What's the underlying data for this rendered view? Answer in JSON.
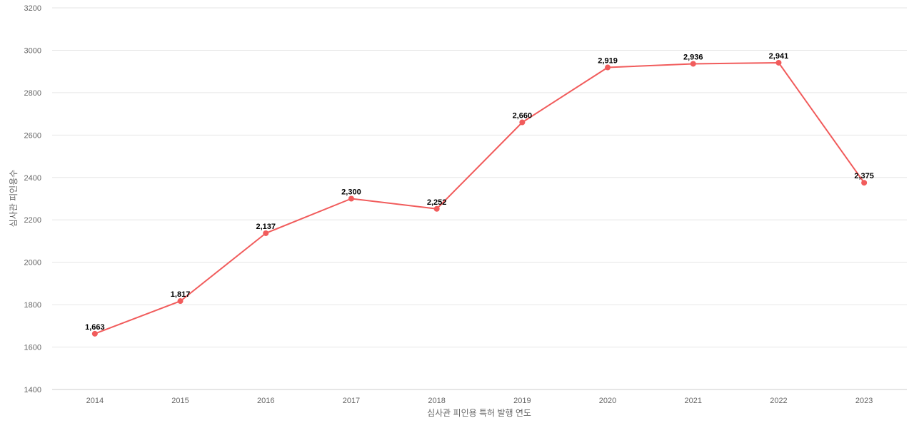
{
  "chart_data": {
    "type": "line",
    "title": "",
    "xlabel": "심사관 피인용 특허 발행 연도",
    "ylabel": "심사관 피인용수",
    "x": [
      "2014",
      "2015",
      "2016",
      "2017",
      "2018",
      "2019",
      "2020",
      "2021",
      "2022",
      "2023"
    ],
    "series": [
      {
        "values": [
          1663,
          1817,
          2137,
          2300,
          2252,
          2660,
          2919,
          2936,
          2941,
          2375
        ],
        "labels": [
          "1,663",
          "1,817",
          "2,137",
          "2,300",
          "2,252",
          "2,660",
          "2,919",
          "2,936",
          "2,941",
          "2,375"
        ],
        "color": "#f15c5c"
      }
    ],
    "yticks": [
      "1400",
      "1600",
      "1800",
      "2000",
      "2200",
      "2400",
      "2600",
      "2800",
      "3000",
      "3200"
    ],
    "ylim": [
      1400,
      3200
    ],
    "grid": true,
    "legend": "none"
  }
}
